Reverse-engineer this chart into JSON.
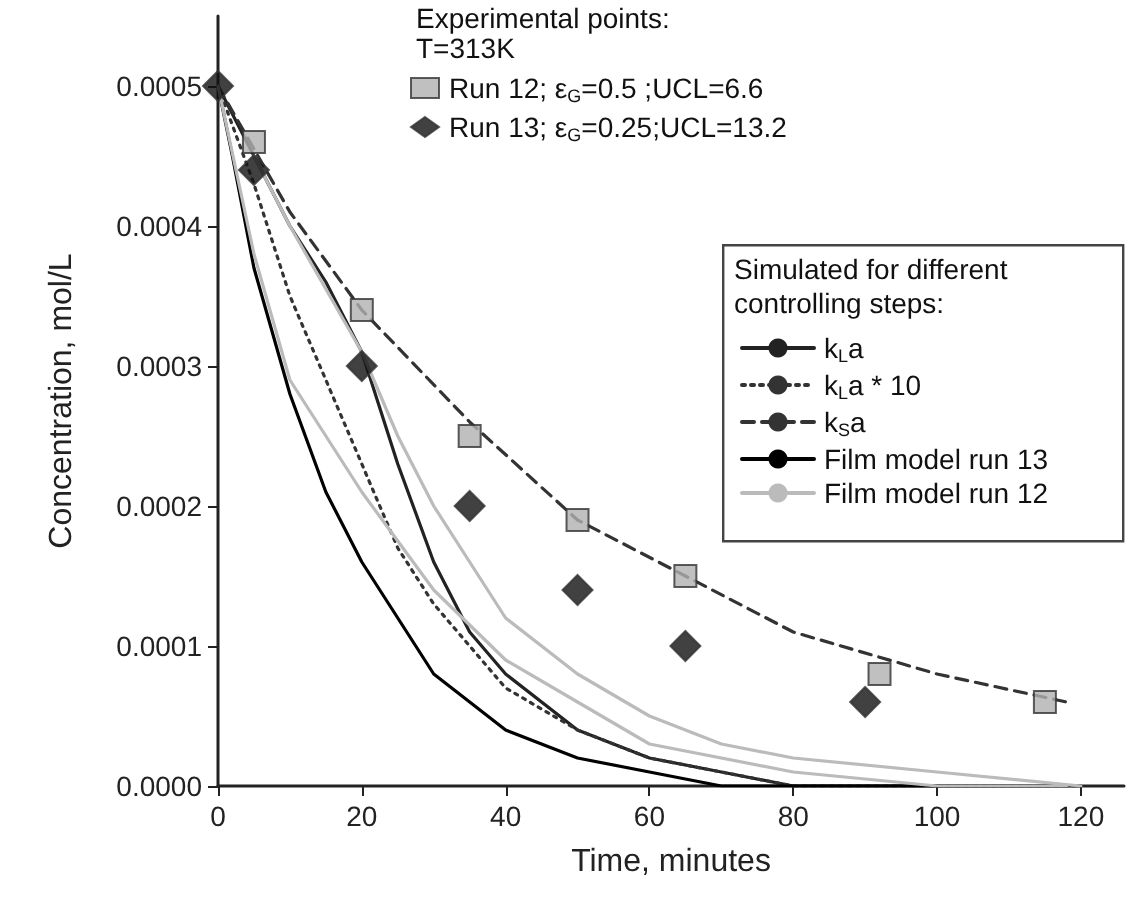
{
  "chart_data": {
    "type": "line",
    "xlabel": "Time, minutes",
    "ylabel": "Concentration, mol/L",
    "legend_title": "Experimental points:",
    "annotations": [
      "T=313K",
      "Simulated for different controlling steps:"
    ],
    "xlim": [
      0,
      126
    ],
    "xticks": [
      0,
      20,
      40,
      60,
      80,
      100,
      120
    ],
    "ylim": [
      0,
      0.00055
    ],
    "yticks": [
      {
        "value": 0,
        "label": "0.0000"
      },
      {
        "value": 0.0001,
        "label": "0.0001"
      },
      {
        "value": 0.0002,
        "label": "0.0002"
      },
      {
        "value": 0.0003,
        "label": "0.0003"
      },
      {
        "value": 0.0004,
        "label": "0.0004"
      },
      {
        "value": 0.0005,
        "label": "0.0005"
      }
    ],
    "legend": "top right",
    "grid": false,
    "series": [
      {
        "name": "Run 12; ε$_{G}$=0.5 ;UCL=6.6",
        "type": "scatter",
        "marker": "square",
        "color": "#b0b0b0",
        "x": [
          5,
          20,
          35,
          50,
          65,
          92,
          115
        ],
        "values": [
          0.00046,
          0.00034,
          0.00025,
          0.00019,
          0.00015,
          8e-05,
          6e-05
        ]
      },
      {
        "name": "Run 13; ε$_{G}$=0.25;UCL=13.2",
        "type": "scatter",
        "marker": "diamond",
        "color": "#111111",
        "x": [
          0,
          5,
          20,
          35,
          50,
          65,
          90
        ],
        "values": [
          0.0005,
          0.00044,
          0.0003,
          0.0002,
          0.00014,
          0.0001,
          6e-05
        ]
      },
      {
        "name": "k$_{L}$a",
        "line_style": "solid",
        "color": "#222222",
        "x": [
          0,
          5,
          10,
          15,
          20,
          25,
          30,
          35,
          40,
          50,
          60,
          70,
          80,
          100,
          120
        ],
        "values": [
          0.0005,
          0.00045,
          0.0004,
          0.00036,
          0.00031,
          0.00023,
          0.00016,
          0.00011,
          8e-05,
          4e-05,
          2e-05,
          1e-05,
          0,
          0,
          0
        ]
      },
      {
        "name": "k$_{L}$a * 10",
        "line_style": "dotted",
        "color": "#333333",
        "x": [
          0,
          5,
          10,
          15,
          20,
          25,
          30,
          40,
          50,
          60,
          70,
          80,
          100,
          120
        ],
        "values": [
          0.0005,
          0.00043,
          0.00035,
          0.00029,
          0.00023,
          0.00017,
          0.00013,
          7e-05,
          4e-05,
          2e-05,
          1e-05,
          0,
          0,
          0
        ]
      },
      {
        "name": "k$_{S}$a",
        "line_style": "dashed",
        "color": "#333333",
        "x": [
          0,
          10,
          20,
          35,
          50,
          65,
          80,
          100,
          118
        ],
        "values": [
          0.0005,
          0.00041,
          0.00034,
          0.00026,
          0.00019,
          0.00015,
          0.00011,
          8e-05,
          6e-05
        ]
      },
      {
        "name": "Film model run 13",
        "line_style": "solid",
        "color": "#000000",
        "x": [
          0,
          2,
          5,
          10,
          15,
          20,
          25,
          30,
          40,
          50,
          60,
          70,
          80,
          100,
          118
        ],
        "values": [
          0.0005,
          0.00045,
          0.00037,
          0.00028,
          0.00021,
          0.00016,
          0.00012,
          8e-05,
          4e-05,
          2e-05,
          1e-05,
          0,
          0,
          0,
          0
        ]
      },
      {
        "name": "Film model run 12",
        "line_style": "solid",
        "color": "#bbbbbb",
        "x": [
          0,
          5,
          10,
          20,
          30,
          40,
          50,
          60,
          80,
          100,
          118
        ],
        "values": [
          0.0005,
          0.00038,
          0.00029,
          0.00021,
          0.00014,
          9e-05,
          6e-05,
          3e-05,
          1e-05,
          0,
          0
        ]
      },
      {
        "line_style": "solid",
        "color": "#bbbbbb",
        "x": [
          5,
          10,
          20,
          25,
          30,
          35,
          40,
          50,
          60,
          70,
          80,
          100,
          120
        ],
        "values": [
          0.00045,
          0.0004,
          0.00031,
          0.00025,
          0.0002,
          0.00016,
          0.00012,
          8e-05,
          5e-05,
          3e-05,
          2e-05,
          1e-05,
          0
        ]
      }
    ]
  }
}
